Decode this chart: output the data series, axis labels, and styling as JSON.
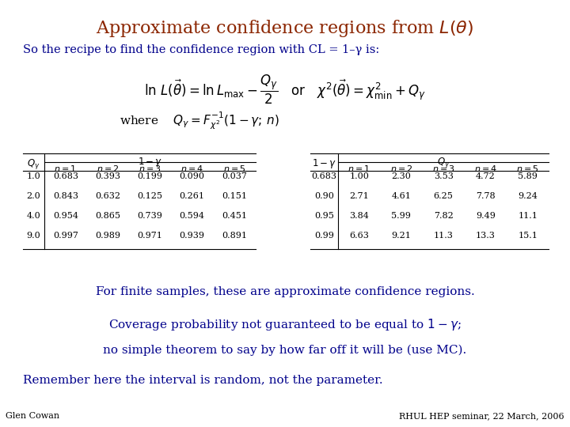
{
  "title": "Approximate confidence regions from $L(\\theta)$",
  "title_color": "#8B2500",
  "body_color": "#00008B",
  "bg_color": "#FFFFFF",
  "subtitle": "So the recipe to find the confidence region with CL = 1–γ is:",
  "table1_row_labels": [
    "1.0",
    "2.0",
    "4.0",
    "9.0"
  ],
  "table1_col_labels": [
    "$n=1$",
    "$n=2$",
    "$n=3$",
    "$n=4$",
    "$n=5$"
  ],
  "table1_data": [
    [
      "0.683",
      "0.393",
      "0.199",
      "0.090",
      "0.037"
    ],
    [
      "0.843",
      "0.632",
      "0.125",
      "0.261",
      "0.151"
    ],
    [
      "0.954",
      "0.865",
      "0.739",
      "0.594",
      "0.451"
    ],
    [
      "0.997",
      "0.989",
      "0.971",
      "0.939",
      "0.891"
    ]
  ],
  "table2_row_labels": [
    "0.683",
    "0.90",
    "0.95",
    "0.99"
  ],
  "table2_col_labels": [
    "$n=1$",
    "$n=2$",
    "$n=3$",
    "$n=4$",
    "$n=5$"
  ],
  "table2_data": [
    [
      "1.00",
      "2.30",
      "3.53",
      "4.72",
      "5.89"
    ],
    [
      "2.71",
      "4.61",
      "6.25",
      "7.78",
      "9.24"
    ],
    [
      "3.84",
      "5.99",
      "7.82",
      "9.49",
      "11.1"
    ],
    [
      "6.63",
      "9.21",
      "11.3",
      "13.3",
      "15.1"
    ]
  ],
  "text1": "For finite samples, these are approximate confidence regions.",
  "text2": "Coverage probability not guaranteed to be equal to $1-\\gamma$;",
  "text3": "no simple theorem to say by how far off it will be (use MC).",
  "text4": "Remember here the interval is random, not the parameter.",
  "footer_left": "Glen Cowan",
  "footer_right": "RHUL HEP seminar, 22 March, 2006",
  "footer_color": "#000000"
}
